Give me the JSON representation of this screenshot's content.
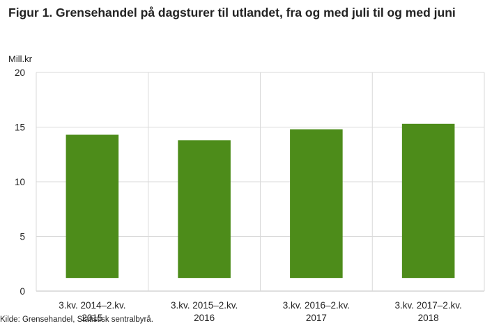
{
  "header": {
    "title": "Figur 1. Grensehandel på dagsturer til utlandet, fra og med juli til og med juni"
  },
  "footer": {
    "source": "Kilde: Grensehandel, Statistisk sentralbyrå."
  },
  "colors": {
    "bar": "#4d8c1a",
    "grid": "#d9d9d9",
    "axis": "#bfbfbf"
  },
  "chart_data": {
    "type": "bar",
    "title": "Figur 1. Grensehandel på dagsturer til utlandet, fra og med juli til og med juni",
    "ylabel": "Mill.kr",
    "xlabel": "",
    "ylim": [
      0,
      20
    ],
    "yticks": [
      0,
      5,
      10,
      15,
      20
    ],
    "grid": true,
    "categories": [
      [
        "3.kv. 2014–2.kv.",
        "2015"
      ],
      [
        "3.kv. 2015–2.kv.",
        "2016"
      ],
      [
        "3.kv. 2016–2.kv.",
        "2017"
      ],
      [
        "3.kv. 2017–2.kv.",
        "2018"
      ]
    ],
    "values": [
      14.3,
      13.8,
      14.8,
      15.3
    ],
    "bar_base": 1.2
  }
}
